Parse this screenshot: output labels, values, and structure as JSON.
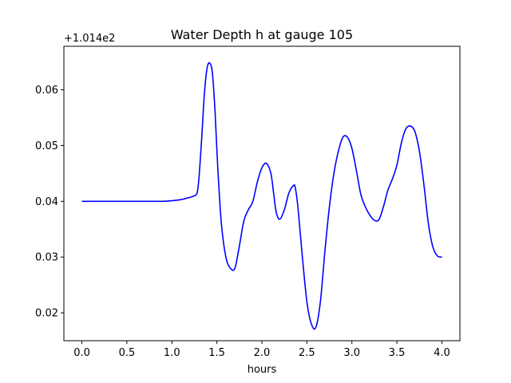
{
  "chart_data": {
    "type": "line",
    "title": "Water Depth h at gauge 105",
    "xlabel": "hours",
    "ylabel": "",
    "offset_label": "+1.014e2",
    "xlim": [
      -0.2,
      4.2
    ],
    "ylim": [
      0.015,
      0.0678
    ],
    "xticks": [
      0.0,
      0.5,
      1.0,
      1.5,
      2.0,
      2.5,
      3.0,
      3.5,
      4.0
    ],
    "xtick_labels": [
      "0.0",
      "0.5",
      "1.0",
      "1.5",
      "2.0",
      "2.5",
      "3.0",
      "3.5",
      "4.0"
    ],
    "yticks": [
      0.02,
      0.03,
      0.04,
      0.05,
      0.06
    ],
    "ytick_labels": [
      "0.02",
      "0.03",
      "0.04",
      "0.05",
      "0.06"
    ],
    "grid": false,
    "series": [
      {
        "color": "#0000ff",
        "x": [
          0.0,
          0.25,
          0.5,
          0.75,
          0.9,
          1.0,
          1.1,
          1.15,
          1.2,
          1.25,
          1.28,
          1.3,
          1.33,
          1.36,
          1.39,
          1.42,
          1.45,
          1.48,
          1.51,
          1.55,
          1.6,
          1.65,
          1.7,
          1.75,
          1.8,
          1.85,
          1.9,
          1.95,
          2.0,
          2.05,
          2.1,
          2.13,
          2.16,
          2.2,
          2.25,
          2.3,
          2.35,
          2.37,
          2.4,
          2.45,
          2.5,
          2.55,
          2.6,
          2.65,
          2.7,
          2.75,
          2.8,
          2.85,
          2.9,
          2.95,
          3.0,
          3.05,
          3.1,
          3.15,
          3.2,
          3.25,
          3.3,
          3.35,
          3.4,
          3.45,
          3.5,
          3.55,
          3.6,
          3.65,
          3.7,
          3.75,
          3.8,
          3.85,
          3.9,
          3.95,
          4.0
        ],
        "y": [
          0.04,
          0.04,
          0.04,
          0.04,
          0.04,
          0.0401,
          0.0403,
          0.0405,
          0.0407,
          0.041,
          0.0415,
          0.044,
          0.051,
          0.059,
          0.0638,
          0.0648,
          0.063,
          0.056,
          0.046,
          0.036,
          0.03,
          0.028,
          0.028,
          0.032,
          0.0365,
          0.0385,
          0.04,
          0.0435,
          0.046,
          0.0468,
          0.045,
          0.0415,
          0.038,
          0.0368,
          0.0385,
          0.0415,
          0.0428,
          0.0425,
          0.039,
          0.03,
          0.022,
          0.018,
          0.0174,
          0.022,
          0.031,
          0.039,
          0.045,
          0.049,
          0.0515,
          0.0515,
          0.0495,
          0.0455,
          0.0412,
          0.039,
          0.0375,
          0.0366,
          0.0367,
          0.039,
          0.042,
          0.044,
          0.0465,
          0.0505,
          0.053,
          0.0535,
          0.0525,
          0.049,
          0.043,
          0.036,
          0.0318,
          0.0302,
          0.03
        ]
      }
    ]
  }
}
